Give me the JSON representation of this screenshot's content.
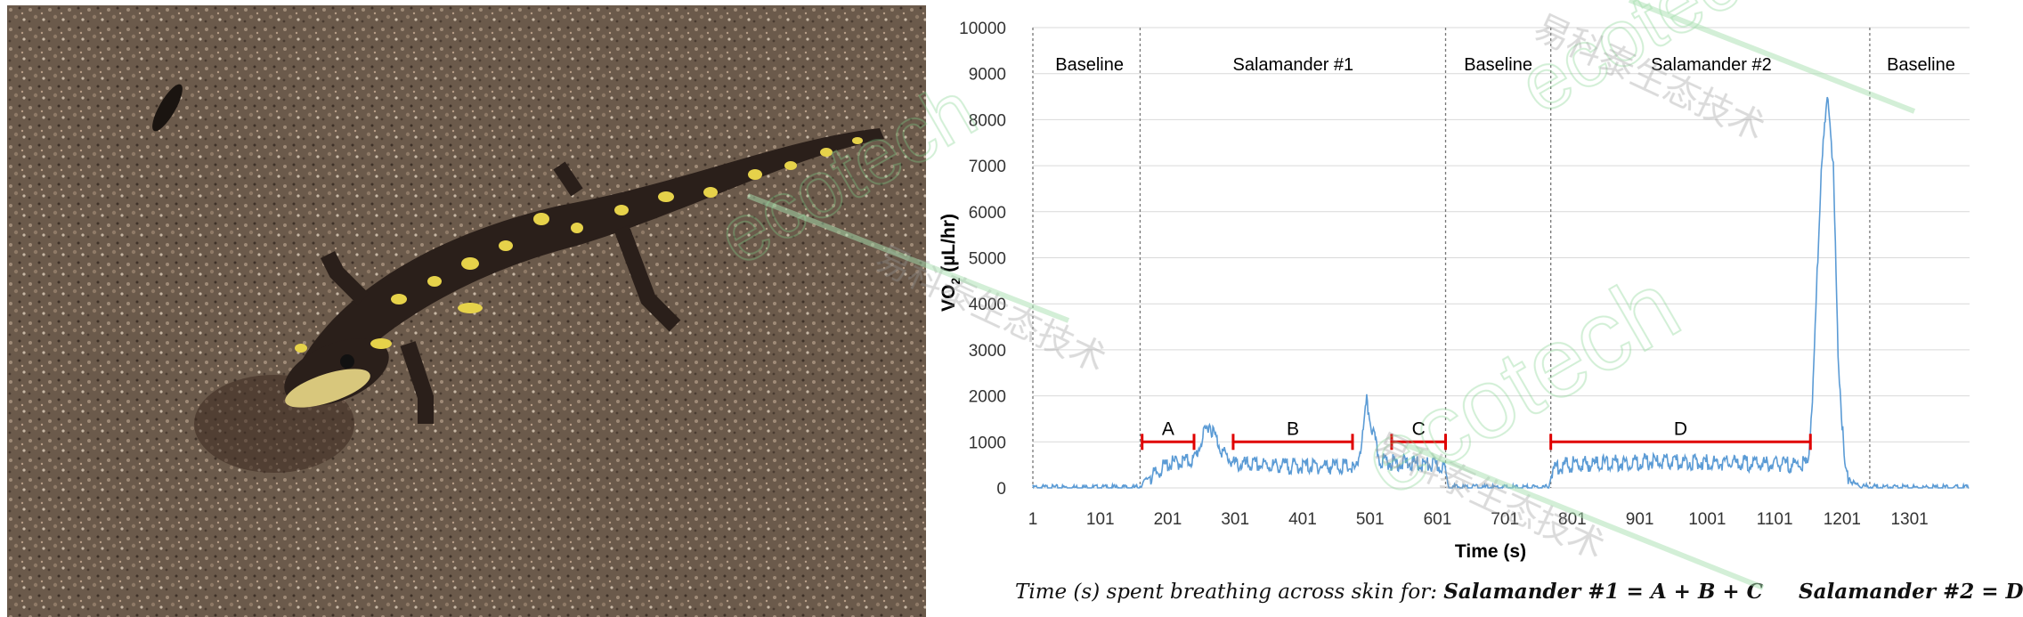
{
  "photo": {
    "subject": "salamander-photo"
  },
  "chart_data": {
    "type": "line",
    "ylabel_main": "VO",
    "ylabel_sub": "2",
    "ylabel_unit": "(µL/hr)",
    "xlabel": "Time (s)",
    "ylim": [
      0,
      10000
    ],
    "yticks": [
      0,
      1000,
      2000,
      3000,
      4000,
      5000,
      6000,
      7000,
      8000,
      9000,
      10000
    ],
    "xlim": [
      1,
      1390
    ],
    "xticks": [
      1,
      101,
      201,
      301,
      401,
      501,
      601,
      701,
      801,
      901,
      1001,
      1101,
      1201,
      1301
    ],
    "phase_boundaries": [
      160,
      613,
      769,
      1242
    ],
    "phases": [
      {
        "label": "Baseline",
        "center": 85
      },
      {
        "label": "Salamander #1",
        "center": 387
      },
      {
        "label": "Baseline",
        "center": 691
      },
      {
        "label": "Salamander #2",
        "center": 1007
      },
      {
        "label": "Baseline",
        "center": 1318
      }
    ],
    "intervals": [
      {
        "label": "A",
        "start": 163,
        "end": 240,
        "y": 1000
      },
      {
        "label": "B",
        "start": 298,
        "end": 475,
        "y": 1000
      },
      {
        "label": "C",
        "start": 533,
        "end": 613,
        "y": 1000
      },
      {
        "label": "D",
        "start": 769,
        "end": 1154,
        "y": 1000
      }
    ],
    "series": [
      {
        "name": "VO2",
        "color": "#5b9bd5",
        "x": [
          1,
          60,
          120,
          158,
          175,
          200,
          240,
          262,
          270,
          283,
          300,
          350,
          400,
          440,
          470,
          480,
          490,
          496,
          505,
          515,
          530,
          580,
          610,
          618,
          700,
          765,
          775,
          800,
          900,
          1000,
          1100,
          1150,
          1157,
          1170,
          1180,
          1188,
          1195,
          1205,
          1215,
          1230,
          1300,
          1390
        ],
        "y": [
          40,
          40,
          40,
          40,
          300,
          600,
          700,
          1500,
          1250,
          850,
          600,
          580,
          560,
          560,
          550,
          450,
          1200,
          1950,
          1300,
          700,
          650,
          600,
          550,
          50,
          40,
          40,
          550,
          600,
          650,
          650,
          600,
          600,
          2000,
          7000,
          8700,
          7000,
          3000,
          500,
          150,
          60,
          40,
          40
        ]
      }
    ]
  },
  "formula": {
    "prefix": "Time (s) spent breathing across skin for: ",
    "s1": "Salamander #1 = A + B + C",
    "s2": "Salamander #2 = D"
  },
  "watermark": {
    "text1": "ecotech",
    "text2": "易科泰生态技术"
  },
  "colors": {
    "line": "#5b9bd5",
    "interval": "#e00000",
    "grid": "#d9d9d9",
    "watermark": "#7fd18b"
  }
}
